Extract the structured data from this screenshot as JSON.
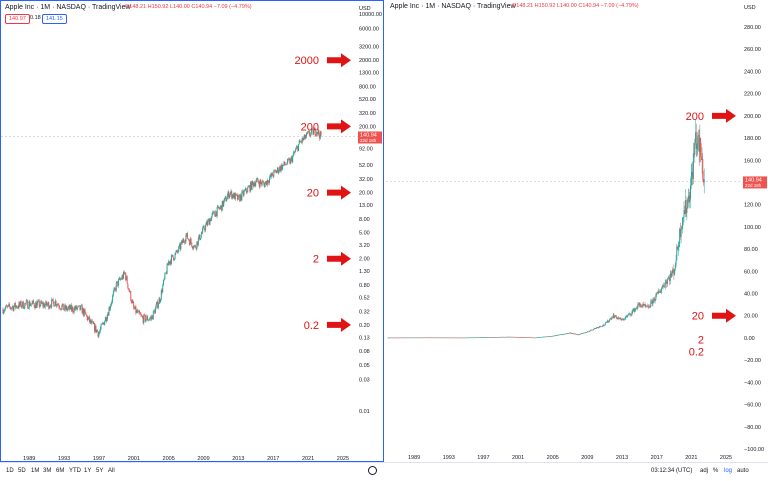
{
  "left_chart": {
    "header_title": "Apple Inc · 1M · NASDAQ · TradingView",
    "ohlc": "O148.21 H150.92 L140.00 C140.94 −7.09 (−4.79%)",
    "bid": "140.97",
    "spread": "0.18",
    "ask": "141.15",
    "price_label": "140.94",
    "countdown": "22d 18h",
    "currency": "USD"
  },
  "right_chart": {
    "header_title": "Apple Inc · 1M · NASDAQ · TradingView",
    "ohlc": "O148.21 H150.92 L140.00 C140.94 −7.09 (−4.79%)",
    "price_label": "140.94",
    "countdown": "22d 18h",
    "currency": "USD"
  },
  "bottom_bar": {
    "ranges": [
      "1D",
      "5D",
      "1M",
      "3M",
      "6M",
      "YTD",
      "1Y",
      "5Y",
      "All"
    ],
    "time": "03:12:34 (UTC)",
    "adj": "adj",
    "percent": "%",
    "log": "log",
    "auto": "auto"
  },
  "colors": {
    "up": "#26a69a",
    "down": "#ef5350",
    "arrow": "#e01414",
    "accent": "#2962ff"
  },
  "chart_data": [
    {
      "type": "line",
      "title": "Apple Inc · 1M · NASDAQ",
      "scale": "log",
      "x_ticks": [
        1989,
        1993,
        1997,
        2001,
        2005,
        2009,
        2013,
        2017,
        2021,
        2025
      ],
      "y_ticks": [
        "10000.00",
        "6000.00",
        "3200.00",
        "2000.00",
        "1300.00",
        "800.00",
        "520.00",
        "320.00",
        "200.00",
        "140.00",
        "92.00",
        "52.00",
        "32.00",
        "20.00",
        "13.00",
        "8.00",
        "5.00",
        "3.20",
        "2.00",
        "1.30",
        "0.80",
        "0.52",
        "0.32",
        "0.20",
        "0.13",
        "0.08",
        "0.05",
        "0.03",
        "0.01"
      ],
      "y_tick_values": [
        10000,
        6000,
        3200,
        2000,
        1300,
        800,
        520,
        320,
        200,
        140,
        92,
        52,
        32,
        20,
        13,
        8,
        5,
        3.2,
        2,
        1.3,
        0.8,
        0.52,
        0.32,
        0.2,
        0.13,
        0.08,
        0.05,
        0.03,
        0.01
      ],
      "annotations": [
        "2000",
        "200",
        "20",
        "2",
        "0.2"
      ],
      "annotation_values": [
        2000,
        200,
        20,
        2,
        0.2
      ],
      "series": [
        {
          "x": [
            1986,
            1988,
            1989,
            1991,
            1992,
            1993,
            1995,
            1996,
            1997,
            1998,
            1999,
            2000,
            2001,
            2002,
            2003,
            2004,
            2005,
            2006,
            2007,
            2008,
            2009,
            2010,
            2011,
            2012,
            2013,
            2014,
            2015,
            2016,
            2017,
            2018,
            2019,
            2020,
            2021,
            2022,
            2022.5
          ],
          "y": [
            0.35,
            0.4,
            0.42,
            0.4,
            0.45,
            0.35,
            0.35,
            0.22,
            0.15,
            0.3,
            0.8,
            1.2,
            0.35,
            0.25,
            0.25,
            0.5,
            1.8,
            2.5,
            4.5,
            3.0,
            5.5,
            9,
            12,
            20,
            16,
            22,
            30,
            27,
            38,
            50,
            60,
            110,
            150,
            175,
            141
          ]
        }
      ]
    },
    {
      "type": "line",
      "title": "Apple Inc · 1M · NASDAQ",
      "scale": "linear",
      "x_ticks": [
        1989,
        1993,
        1997,
        2001,
        2005,
        2009,
        2013,
        2017,
        2021,
        2025
      ],
      "y_ticks": [
        "280.00",
        "260.00",
        "240.00",
        "220.00",
        "200.00",
        "180.00",
        "160.00",
        "140.00",
        "120.00",
        "100.00",
        "80.00",
        "60.00",
        "40.00",
        "20.00",
        "0.00",
        "−20.00",
        "−40.00",
        "−60.00",
        "−80.00",
        "−100.00"
      ],
      "y_tick_values": [
        280,
        260,
        240,
        220,
        200,
        180,
        160,
        140,
        120,
        100,
        80,
        60,
        40,
        20,
        0,
        -20,
        -40,
        -60,
        -80,
        -100
      ],
      "ylim": [
        -100,
        280
      ],
      "annotations": [
        "200",
        "20",
        "2",
        "0.2"
      ],
      "annotation_values": [
        200,
        20,
        2,
        0.2
      ],
      "series": [
        {
          "x": [
            1986,
            1990,
            1995,
            2000,
            2003,
            2005,
            2007,
            2008,
            2009,
            2010,
            2011,
            2012,
            2013,
            2014,
            2015,
            2016,
            2017,
            2018,
            2019,
            2020,
            2020.5,
            2021,
            2021.5,
            2022,
            2022.5
          ],
          "y": [
            0.3,
            0.4,
            0.3,
            1,
            0.3,
            1.8,
            4.5,
            3,
            5.5,
            9,
            12,
            20,
            16,
            22,
            30,
            27,
            38,
            50,
            60,
            110,
            120,
            140,
            180,
            170,
            141
          ]
        }
      ]
    }
  ]
}
